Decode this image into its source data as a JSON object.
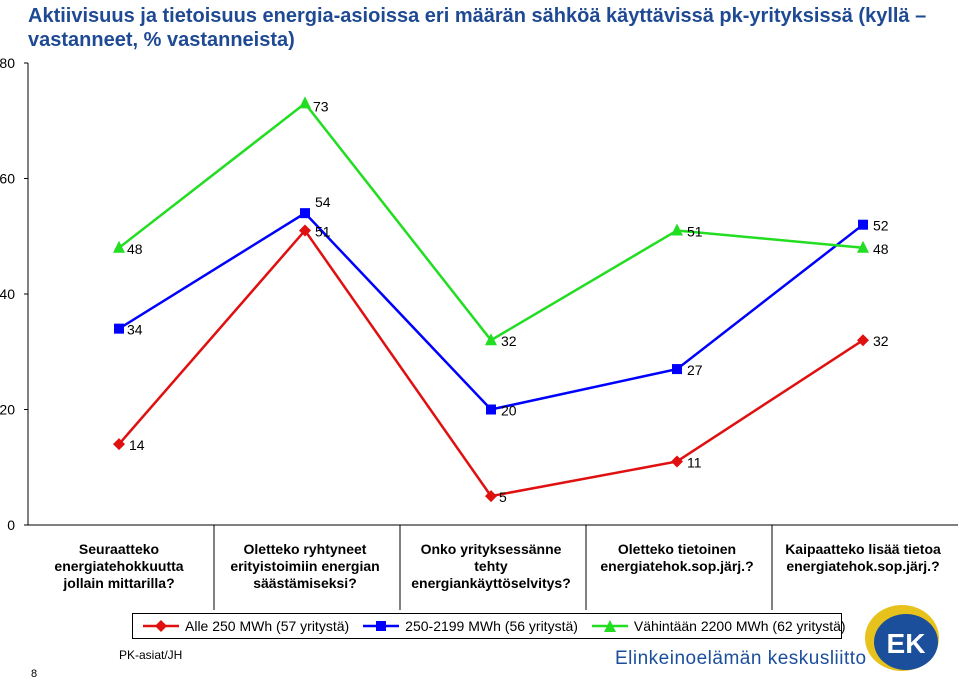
{
  "title": "Aktiivisuus ja tietoisuus energia-asioissa eri määrän sähköä käyttävissä pk-yrityksissä (kyllä –vastanneet, % vastanneista)",
  "footer": {
    "page_number": "8",
    "left_text": "PK-asiat/JH",
    "org_name": "Elinkeinoelämän keskusliitto",
    "logo_text": "EK"
  },
  "colors": {
    "title": "#1f4a93",
    "series_red": "#e01010",
    "series_blue": "#0000ff",
    "series_green": "#22dd22",
    "org": "#1b4e9b"
  },
  "chart_data": {
    "type": "line",
    "categories": [
      "Seuraatteko energiatehokkuutta jollain mittarilla?",
      "Oletteko ryhtyneet erityistoimiin energian säästämiseksi?",
      "Onko yrityksessänne tehty energiankäyttöselvitys?",
      "Oletteko tietoinen energiatehok.sop.järj.?",
      "Kaipaatteko lisää tietoa energiatehok.sop.järj.?"
    ],
    "series": [
      {
        "name": "Alle 250 MWh (57 yritystä)",
        "marker": "diamond",
        "color": "#e01010",
        "values": [
          14,
          51,
          5,
          11,
          32
        ]
      },
      {
        "name": "250-2199 MWh (56 yritystä)",
        "marker": "square",
        "color": "#0000ff",
        "values": [
          34,
          54,
          20,
          27,
          52
        ]
      },
      {
        "name": "Vähintään 2200 MWh (62 yritystä)",
        "marker": "triangle",
        "color": "#22dd22",
        "values": [
          48,
          73,
          32,
          51,
          48
        ]
      }
    ],
    "yticks": [
      "0",
      "20",
      "40",
      "60",
      "80"
    ],
    "ylim": [
      0,
      80
    ],
    "xlabel": "",
    "ylabel": "",
    "grid": false,
    "legend_position": "bottom"
  }
}
